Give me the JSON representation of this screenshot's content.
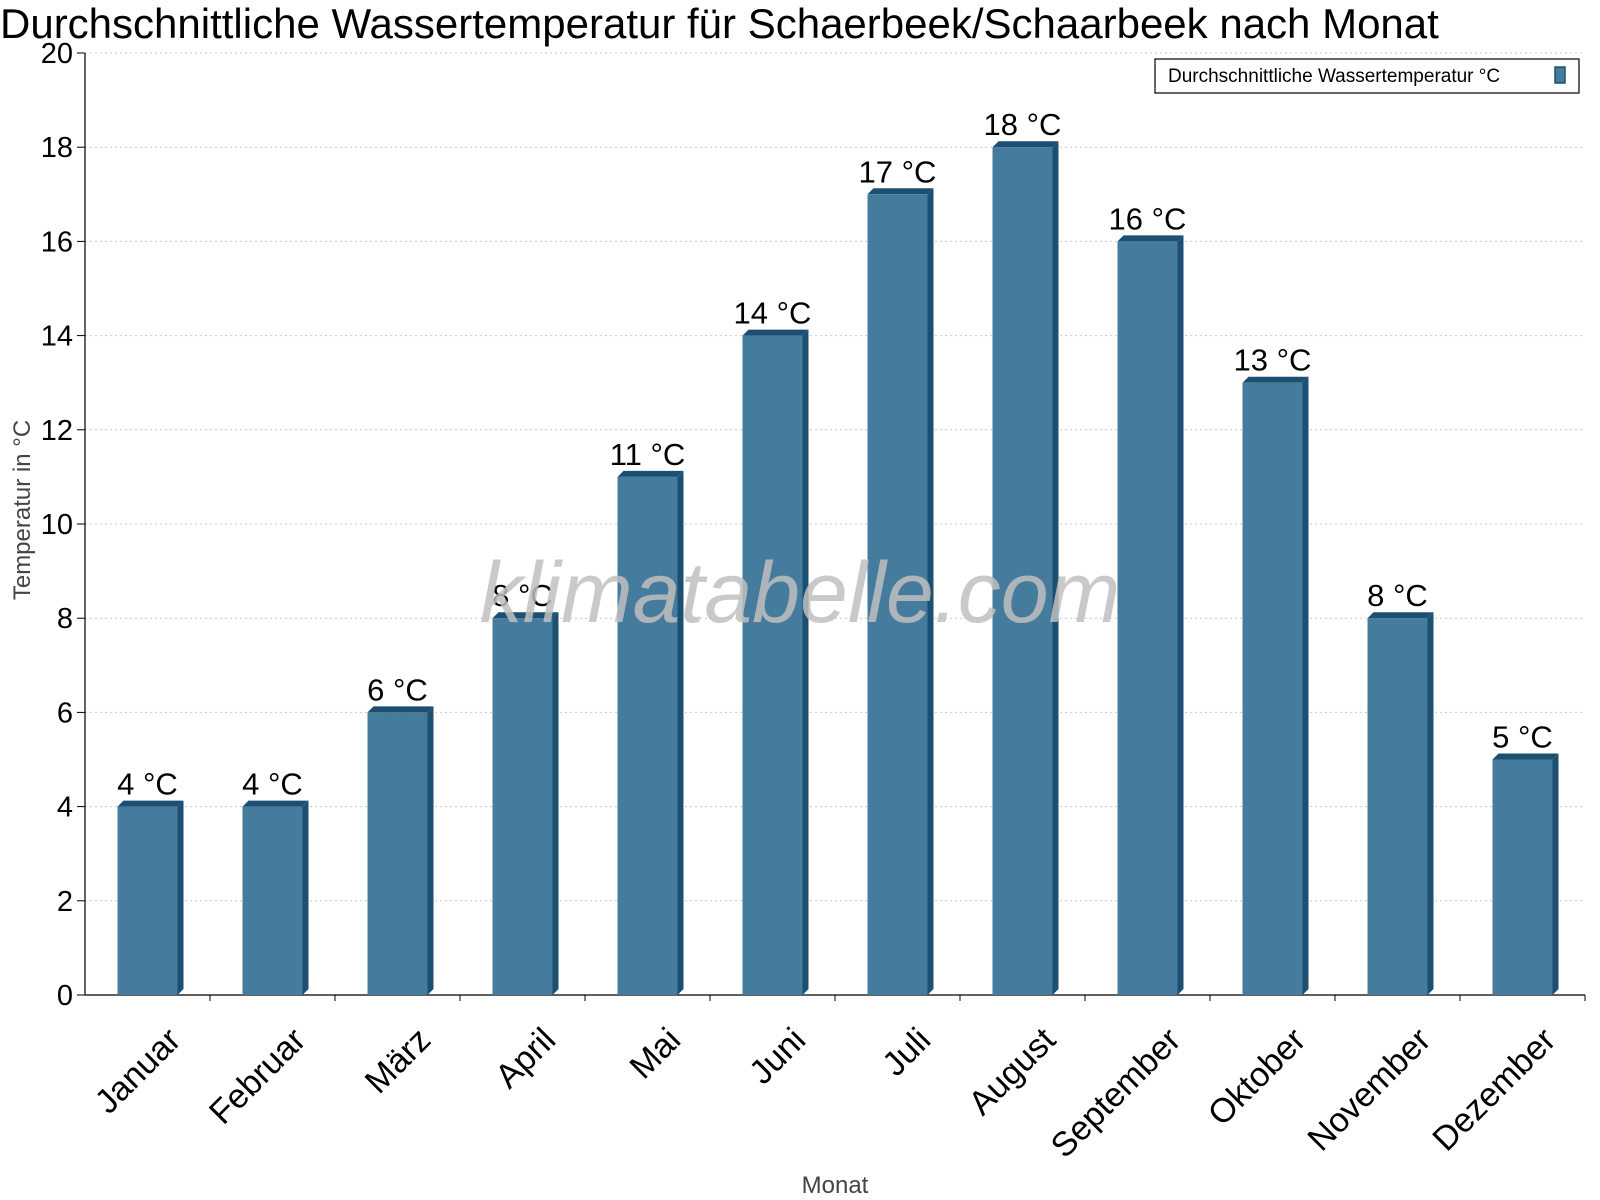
{
  "chart_data": {
    "type": "bar",
    "title": "Durchschnittliche Wassertemperatur für Schaerbeek/Schaarbeek nach Monat",
    "xlabel": "Monat",
    "ylabel": "Temperatur in °C",
    "ylim": [
      0,
      20
    ],
    "yticks": [
      "0",
      "2",
      "4",
      "6",
      "8",
      "10",
      "12",
      "14",
      "16",
      "18",
      "20"
    ],
    "grid": true,
    "legend_position": "top-right",
    "categories": [
      "Januar",
      "Februar",
      "März",
      "April",
      "Mai",
      "Juni",
      "Juli",
      "August",
      "September",
      "Oktober",
      "November",
      "Dezember"
    ],
    "series": [
      {
        "name": "Durchschnittliche Wassertemperatur °C",
        "values": [
          4,
          4,
          6,
          8,
          11,
          14,
          17,
          18,
          16,
          13,
          8,
          5
        ],
        "labels": [
          "4 °C",
          "4 °C",
          "6 °C",
          "8 °C",
          "11 °C",
          "14 °C",
          "17 °C",
          "18 °C",
          "16 °C",
          "13 °C",
          "8 °C",
          "5 °C"
        ],
        "color": "#457b9d",
        "edge_color": "#1d4f73"
      }
    ]
  },
  "watermark": "klimatabelle.com"
}
